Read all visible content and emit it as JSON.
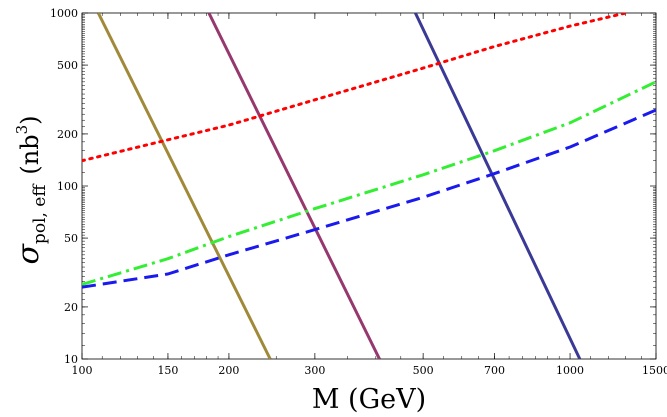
{
  "chart_data": {
    "type": "line",
    "xlabel": "M (GeV)",
    "ylabel": {
      "symbol": "σ",
      "subscript": "pol, eff",
      "unit_open": "(nb",
      "unit_sup": "3",
      "unit_close": ")"
    },
    "x_scale": "log",
    "y_scale": "log",
    "xlim": [
      100,
      1500
    ],
    "ylim": [
      10,
      1000
    ],
    "x_ticks": [
      100,
      150,
      200,
      300,
      500,
      700,
      1000,
      1500
    ],
    "x_tick_labels": [
      "100",
      "150",
      "200",
      "300",
      "500",
      "700",
      "1000",
      "1500"
    ],
    "y_ticks": [
      10,
      20,
      50,
      100,
      200,
      500,
      1000
    ],
    "y_tick_labels": [
      "10",
      "20",
      "50",
      "100",
      "200",
      "500",
      "1000"
    ],
    "grid": false,
    "series": [
      {
        "color": "#a08a3a",
        "style": "solid",
        "x": [
          108,
          243
        ],
        "y": [
          1000,
          10
        ]
      },
      {
        "color": "#96386e",
        "style": "solid",
        "x": [
          182,
          407
        ],
        "y": [
          1000,
          10
        ]
      },
      {
        "color": "#3a3a96",
        "style": "solid",
        "x": [
          482,
          1047
        ],
        "y": [
          1000,
          10
        ]
      },
      {
        "color": "#ff0000",
        "style": "dotted",
        "x": [
          100,
          150,
          200,
          300,
          500,
          700,
          1000,
          1300
        ],
        "y": [
          140,
          185,
          225,
          315,
          480,
          640,
          840,
          1000
        ]
      },
      {
        "color": "#33ee33",
        "style": "dashdot",
        "x": [
          100,
          150,
          200,
          300,
          500,
          700,
          1000,
          1500
        ],
        "y": [
          27,
          38,
          51,
          74,
          116,
          160,
          232,
          400
        ]
      },
      {
        "color": "#1a1aee",
        "style": "dashed",
        "x": [
          100,
          150,
          200,
          300,
          500,
          700,
          1000,
          1500
        ],
        "y": [
          26,
          31,
          40,
          56,
          86,
          118,
          168,
          275
        ]
      }
    ]
  }
}
